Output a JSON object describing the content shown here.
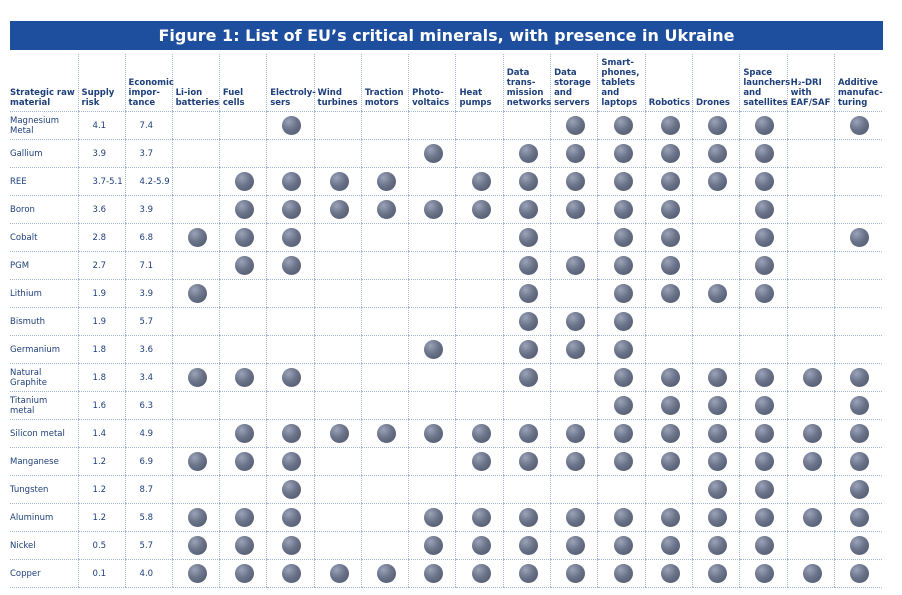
{
  "title": "Figure 1: List of EU’s critical minerals, with presence in Ukraine",
  "table": {
    "header": [
      "Strategic raw\nmaterial",
      "Supply\nrisk",
      "Economic\nimpor-\ntance",
      "Li-ion\nbatteries",
      "Fuel\ncells",
      "Electroly-\nsers",
      "Wind\nturbines",
      "Traction\nmotors",
      "Photo-\nvoltaics",
      "Heat\npumps",
      "Data\ntrans-\nmission\nnetworks",
      "Data\nstorage\nand\nservers",
      "Smart-\nphones,\ntablets and\nlaptops",
      "Robotics",
      "Drones",
      "Space\nlaunchers\nand\nsatellites",
      "H₂-DRI\nwith\nEAF/SAF",
      "Additive\nmanufac-\nturing"
    ],
    "rows": [
      {
        "material": "Magnesium\nMetal",
        "supply_risk": "4.1",
        "economic_importance": "7.4",
        "presence": [
          false,
          false,
          true,
          false,
          false,
          false,
          false,
          false,
          true,
          true,
          true,
          true,
          true,
          false,
          true
        ]
      },
      {
        "material": "Gallium",
        "supply_risk": "3.9",
        "economic_importance": "3.7",
        "presence": [
          false,
          false,
          false,
          false,
          false,
          true,
          false,
          true,
          true,
          true,
          true,
          true,
          true,
          false,
          false
        ]
      },
      {
        "material": "REE",
        "supply_risk": "3.7-5.1",
        "economic_importance": "4.2-5.9",
        "presence": [
          false,
          true,
          true,
          true,
          true,
          false,
          true,
          true,
          true,
          true,
          true,
          true,
          true,
          false,
          false
        ]
      },
      {
        "material": "Boron",
        "supply_risk": "3.6",
        "economic_importance": "3.9",
        "presence": [
          false,
          true,
          true,
          true,
          true,
          true,
          true,
          true,
          true,
          true,
          true,
          false,
          true,
          false,
          false
        ]
      },
      {
        "material": "Cobalt",
        "supply_risk": "2.8",
        "economic_importance": "6.8",
        "presence": [
          true,
          true,
          true,
          false,
          false,
          false,
          false,
          true,
          false,
          true,
          true,
          false,
          true,
          false,
          true
        ]
      },
      {
        "material": "PGM",
        "supply_risk": "2.7",
        "economic_importance": "7.1",
        "presence": [
          false,
          true,
          true,
          false,
          false,
          false,
          false,
          true,
          true,
          true,
          true,
          false,
          true,
          false,
          false
        ]
      },
      {
        "material": "Lithium",
        "supply_risk": "1.9",
        "economic_importance": "3.9",
        "presence": [
          true,
          false,
          false,
          false,
          false,
          false,
          false,
          true,
          false,
          true,
          true,
          true,
          true,
          false,
          false
        ]
      },
      {
        "material": "Bismuth",
        "supply_risk": "1.9",
        "economic_importance": "5.7",
        "presence": [
          false,
          false,
          false,
          false,
          false,
          false,
          false,
          true,
          true,
          true,
          false,
          false,
          false,
          false,
          false
        ]
      },
      {
        "material": "Germanium",
        "supply_risk": "1.8",
        "economic_importance": "3.6",
        "presence": [
          false,
          false,
          false,
          false,
          false,
          true,
          false,
          true,
          true,
          true,
          false,
          false,
          false,
          false,
          false
        ]
      },
      {
        "material": "Natural\nGraphite",
        "supply_risk": "1.8",
        "economic_importance": "3.4",
        "presence": [
          true,
          true,
          true,
          false,
          false,
          false,
          false,
          true,
          false,
          true,
          true,
          true,
          true,
          true,
          true
        ]
      },
      {
        "material": "Titanium\nmetal",
        "supply_risk": "1.6",
        "economic_importance": "6.3",
        "presence": [
          false,
          false,
          false,
          false,
          false,
          false,
          false,
          false,
          false,
          true,
          true,
          true,
          true,
          false,
          true
        ]
      },
      {
        "material": "Silicon metal",
        "supply_risk": "1.4",
        "economic_importance": "4.9",
        "presence": [
          false,
          true,
          true,
          true,
          true,
          true,
          true,
          true,
          true,
          true,
          true,
          true,
          true,
          true,
          true
        ]
      },
      {
        "material": "Manganese",
        "supply_risk": "1.2",
        "economic_importance": "6.9",
        "presence": [
          true,
          true,
          true,
          false,
          false,
          false,
          true,
          true,
          true,
          true,
          true,
          true,
          true,
          true,
          true
        ]
      },
      {
        "material": "Tungsten",
        "supply_risk": "1.2",
        "economic_importance": "8.7",
        "presence": [
          false,
          false,
          true,
          false,
          false,
          false,
          false,
          false,
          false,
          false,
          false,
          true,
          true,
          false,
          true
        ]
      },
      {
        "material": "Aluminum",
        "supply_risk": "1.2",
        "economic_importance": "5.8",
        "presence": [
          true,
          true,
          true,
          false,
          false,
          true,
          true,
          true,
          true,
          true,
          true,
          true,
          true,
          true,
          true
        ]
      },
      {
        "material": "Nickel",
        "supply_risk": "0.5",
        "economic_importance": "5.7",
        "presence": [
          true,
          true,
          true,
          false,
          false,
          true,
          true,
          true,
          true,
          true,
          true,
          true,
          true,
          false,
          true
        ]
      },
      {
        "material": "Copper",
        "supply_risk": "0.1",
        "economic_importance": "4.0",
        "presence": [
          true,
          true,
          true,
          true,
          true,
          true,
          true,
          true,
          true,
          true,
          true,
          true,
          true,
          true,
          true
        ]
      }
    ]
  }
}
